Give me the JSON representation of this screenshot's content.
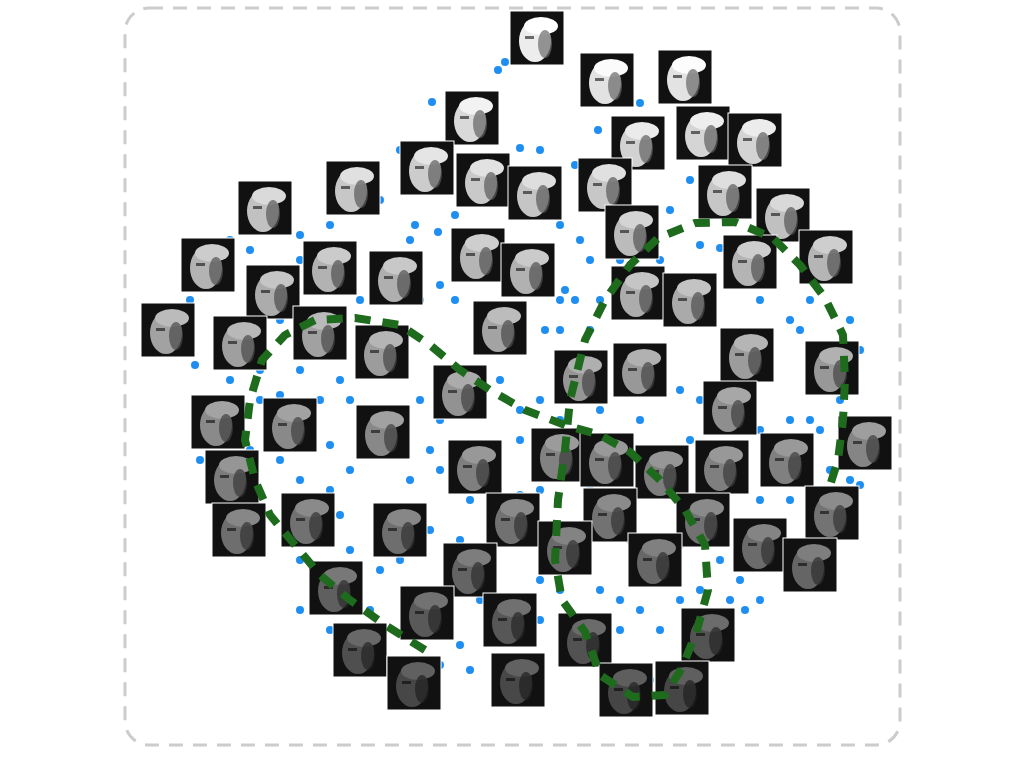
{
  "chart_data": {
    "type": "scatter",
    "xlim": [
      0,
      775
    ],
    "ylim": [
      0,
      737
    ],
    "tick_labels": false,
    "grid": false,
    "series": [
      {
        "type": "scatter",
        "marker": "circle",
        "color": "#1e8ff0",
        "x": [
          373,
          380,
          307,
          473,
          515,
          395,
          415,
          380,
          330,
          420,
          435,
          313,
          290,
          455,
          465,
          440,
          450,
          435,
          475,
          420,
          435,
          465,
          315,
          295,
          330,
          175,
          205,
          285,
          235,
          155,
          70,
          105,
          135,
          175,
          215,
          225,
          295,
          315,
          375,
          395,
          415,
          475,
          515,
          555,
          575,
          575,
          635,
          665,
          675,
          685,
          635,
          645,
          575,
          595,
          735,
          725,
          715,
          695,
          685,
          665,
          635,
          655,
          735,
          725,
          595,
          555,
          515,
          485,
          435,
          395,
          305,
          285,
          225,
          205,
          175,
          155,
          125,
          135,
          75,
          85,
          215,
          225,
          175,
          255,
          275,
          305,
          335,
          355,
          325,
          335,
          375,
          415,
          435,
          475,
          495,
          515,
          535,
          555,
          575,
          605,
          620,
          615,
          635,
          605,
          495,
          505,
          555,
          595,
          415,
          395,
          345,
          465,
          495,
          535,
          525,
          545,
          565,
          475,
          450,
          315,
          275,
          255,
          175,
          125,
          105,
          65,
          65,
          135,
          155,
          195,
          205,
          275,
          315,
          365,
          175,
          205,
          245,
          315,
          345,
          465,
          525,
          535,
          415,
          635,
          665,
          695,
          705,
          745,
          595,
          565
        ],
        "values": [
          675,
          683,
          643,
          615,
          642,
          597,
          595,
          585,
          530,
          530,
          520,
          513,
          520,
          505,
          485,
          455,
          445,
          445,
          445,
          415,
          415,
          415,
          460,
          445,
          445,
          510,
          520,
          505,
          445,
          425,
          380,
          365,
          375,
          375,
          365,
          345,
          345,
          325,
          365,
          335,
          345,
          335,
          325,
          355,
          345,
          445,
          445,
          425,
          415,
          445,
          505,
          545,
          500,
          497,
          395,
          425,
          345,
          315,
          325,
          325,
          315,
          305,
          260,
          265,
          245,
          245,
          250,
          265,
          325,
          305,
          295,
          265,
          275,
          255,
          265,
          285,
          295,
          235,
          285,
          245,
          230,
          195,
          185,
          175,
          185,
          215,
          205,
          145,
          115,
          100,
          105,
          125,
          155,
          155,
          145,
          135,
          115,
          145,
          155,
          145,
          135,
          165,
          145,
          95,
          115,
          205,
          200,
          185,
          255,
          250,
          245,
          255,
          485,
          485,
          525,
          535,
          565,
          545,
          580,
          585,
          595,
          545,
          485,
          495,
          505,
          445,
          400,
          345,
          350,
          345,
          300,
          290,
          275,
          155,
          135,
          115,
          135,
          80,
          75,
          85,
          65,
          80,
          165,
          245,
          245,
          255,
          275,
          305,
          315,
          305
        ]
      },
      {
        "type": "scatter",
        "marker": "image",
        "color": "#111111",
        "x": [
          412,
          482,
          560,
          347,
          513,
          578,
          630,
          228,
          302,
          358,
          410,
          480,
          600,
          140,
          658,
          507,
          353,
          403,
          625,
          701,
          83,
          148,
          205,
          271,
          513,
          565,
          43,
          115,
          195,
          257,
          375,
          622,
          707,
          456,
          515,
          335,
          93,
          165,
          258,
          605,
          740,
          107,
          350,
          433,
          482,
          537,
          597,
          662,
          114,
          183,
          275,
          388,
          485,
          440,
          578,
          707,
          345,
          530,
          635,
          685,
          211,
          302,
          385,
          460,
          583,
          235,
          289,
          393,
          501,
          557
        ],
        "values": [
          707,
          665,
          668,
          627,
          602,
          612,
          605,
          557,
          577,
          565,
          552,
          560,
          553,
          537,
          530,
          513,
          490,
          475,
          483,
          488,
          480,
          453,
          477,
          467,
          452,
          445,
          415,
          402,
          412,
          393,
          417,
          390,
          377,
          368,
          375,
          353,
          323,
          320,
          313,
          337,
          302,
          268,
          278,
          290,
          285,
          273,
          278,
          285,
          215,
          225,
          215,
          225,
          230,
          197,
          225,
          232,
          175,
          185,
          200,
          180,
          157,
          132,
          125,
          105,
          110,
          95,
          62,
          65,
          55,
          57
        ]
      },
      {
        "type": "line",
        "line_style": "dashed",
        "color": "#1e6b1e",
        "x": [
          300,
          260,
          225,
          195,
          170,
          145,
          130,
          120,
          125,
          137,
          160,
          190,
          230,
          275,
          305,
          335,
          365,
          400,
          440,
          475,
          505,
          535,
          560,
          580,
          583,
          572,
          557,
          540,
          508,
          475,
          460,
          437,
          430,
          433,
          440,
          445,
          460,
          480,
          505,
          533,
          570,
          610,
          648,
          675,
          700,
          718,
          720,
          718,
          713,
          703
        ],
        "values": [
          95,
          120,
          145,
          170,
          200,
          230,
          265,
          305,
          345,
          385,
          410,
          425,
          427,
          420,
          400,
          375,
          355,
          335,
          320,
          310,
          293,
          265,
          235,
          200,
          155,
          115,
          77,
          50,
          48,
          70,
          113,
          145,
          185,
          245,
          295,
          345,
          405,
          445,
          480,
          507,
          522,
          523,
          507,
          480,
          447,
          410,
          365,
          325,
          285,
          253
        ]
      }
    ]
  }
}
